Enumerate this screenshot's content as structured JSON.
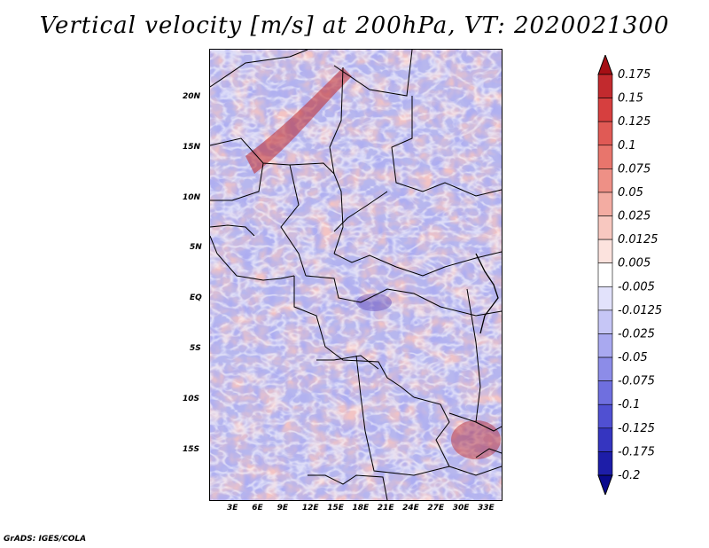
{
  "title": "Vertical velocity [m/s] at 200hPa, VT: 2020021300",
  "map": {
    "lon_ticks": [
      "3E",
      "6E",
      "9E",
      "12E",
      "15E",
      "18E",
      "21E",
      "24E",
      "27E",
      "30E",
      "33E"
    ],
    "lat_ticks": [
      "20N",
      "15N",
      "10N",
      "5N",
      "EQ",
      "5S",
      "10S",
      "15S"
    ]
  },
  "colorbar": {
    "levels": [
      "0.175",
      "0.15",
      "0.125",
      "0.1",
      "0.075",
      "0.05",
      "0.025",
      "0.0125",
      "0.005",
      "-0.005",
      "-0.0125",
      "-0.025",
      "-0.05",
      "-0.075",
      "-0.1",
      "-0.125",
      "-0.175",
      "-0.2"
    ],
    "colors": [
      "#a50f15",
      "#c22a2e",
      "#d63f3f",
      "#e05a55",
      "#e8756c",
      "#ee9086",
      "#f3aca2",
      "#f8c8c0",
      "#fce3de",
      "#ffffff",
      "#e2e2fb",
      "#c6c6f6",
      "#a9a9f0",
      "#8c8ce8",
      "#6f6fdf",
      "#5050d2",
      "#3535c0",
      "#1d1da8",
      "#0a0a8c"
    ]
  },
  "credit": "GrADS: IGES/COLA"
}
